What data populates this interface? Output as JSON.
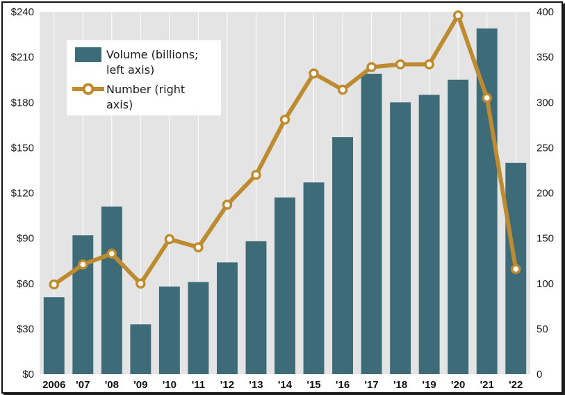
{
  "chart_data": {
    "type": "bar",
    "title": "",
    "categories": [
      "2006",
      "'07",
      "'08",
      "'09",
      "'10",
      "'11",
      "'12",
      "'13",
      "'14",
      "'15",
      "'16",
      "'17",
      "'18",
      "'19",
      "'20",
      "'21",
      "'22"
    ],
    "series": [
      {
        "name": "Volume (billions; left axis)",
        "legend_lines": [
          "Volume (billions;",
          "left axis)"
        ],
        "type": "bar",
        "axis": "left",
        "color": "#3d6b77",
        "values": [
          51,
          92,
          111,
          33,
          58,
          61,
          74,
          88,
          117,
          127,
          157,
          199,
          180,
          185,
          195,
          229,
          140
        ]
      },
      {
        "name": "Number (right axis)",
        "legend_lines": [
          "Number (right",
          "axis)"
        ],
        "type": "line",
        "axis": "right",
        "color": "#bf8b30",
        "values": [
          99,
          121,
          133,
          100,
          149,
          140,
          187,
          220,
          281,
          332,
          314,
          339,
          342,
          342,
          396,
          305,
          116
        ]
      }
    ],
    "y_left": {
      "min": 0,
      "max": 240,
      "ticks": [
        "$0",
        "$30",
        "$60",
        "$90",
        "$120",
        "$150",
        "$180",
        "$210",
        "$240"
      ],
      "tick_values": [
        0,
        30,
        60,
        90,
        120,
        150,
        180,
        210,
        240
      ]
    },
    "y_right": {
      "min": 0,
      "max": 400,
      "ticks": [
        "0",
        "50",
        "100",
        "150",
        "200",
        "250",
        "300",
        "350",
        "400"
      ],
      "tick_values": [
        0,
        50,
        100,
        150,
        200,
        250,
        300,
        350,
        400
      ]
    },
    "grid": "vertical",
    "legend_position": "top-left",
    "colors": {
      "plot_background": "#e4e4e4",
      "grid": "#ffffff",
      "bar": "#3d6b77",
      "line": "#bf8b30"
    }
  }
}
